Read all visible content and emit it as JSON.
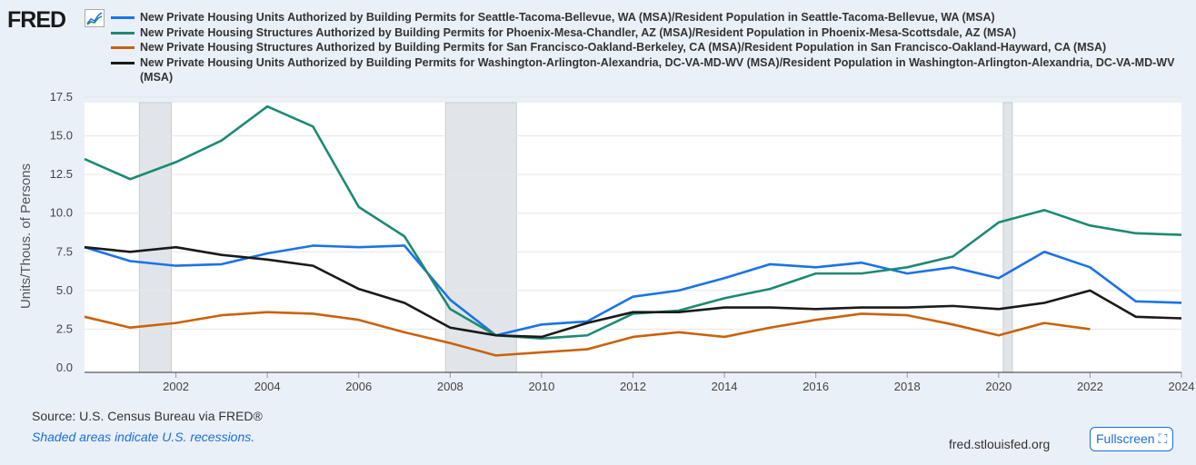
{
  "logo": "FRED",
  "source": "Source: U.S. Census Bureau via FRED®",
  "shaded_note": "Shaded areas indicate U.S. recessions.",
  "site": "fred.stlouisfed.org",
  "fullscreen": "Fullscreen",
  "chart_data": {
    "type": "line",
    "ylabel": "Units/Thous. of Persons",
    "ylim": [
      0,
      17.5
    ],
    "xlim": [
      2000,
      2024
    ],
    "yticks": [
      "0.0",
      "2.5",
      "5.0",
      "7.5",
      "10.0",
      "12.5",
      "15.0",
      "17.5"
    ],
    "xticks": [
      "2002",
      "2004",
      "2006",
      "2008",
      "2010",
      "2012",
      "2014",
      "2016",
      "2018",
      "2020",
      "2022",
      "2024"
    ],
    "recessions": [
      [
        2001.2,
        2001.9
      ],
      [
        2007.9,
        2009.45
      ],
      [
        2020.1,
        2020.3
      ]
    ],
    "x": [
      2000,
      2001,
      2002,
      2003,
      2004,
      2005,
      2006,
      2007,
      2008,
      2009,
      2010,
      2011,
      2012,
      2013,
      2014,
      2015,
      2016,
      2017,
      2018,
      2019,
      2020,
      2021,
      2022,
      2023,
      2024
    ],
    "series": [
      {
        "name": "New Private Housing Units Authorized by Building Permits for Seattle-Tacoma-Bellevue, WA (MSA)/Resident Population in Seattle-Tacoma-Bellevue, WA (MSA)",
        "color": "#1a73e8",
        "values": [
          7.8,
          6.9,
          6.6,
          6.7,
          7.4,
          7.9,
          7.8,
          7.9,
          4.4,
          2.1,
          2.8,
          3.0,
          4.6,
          5.0,
          5.8,
          6.7,
          6.5,
          6.8,
          6.1,
          6.5,
          5.8,
          7.5,
          6.5,
          4.3,
          4.2
        ]
      },
      {
        "name": "New Private Housing Structures Authorized by Building Permits for Phoenix-Mesa-Chandler, AZ (MSA)/Resident Population in Phoenix-Mesa-Scottsdale, AZ (MSA)",
        "color": "#1d8a73",
        "values": [
          13.5,
          12.2,
          13.3,
          14.7,
          16.9,
          15.6,
          10.4,
          8.5,
          3.8,
          2.1,
          1.9,
          2.1,
          3.5,
          3.7,
          4.5,
          5.1,
          6.1,
          6.1,
          6.5,
          7.2,
          9.4,
          10.2,
          9.2,
          8.7,
          8.6
        ]
      },
      {
        "name": "New Private Housing Structures Authorized by Building Permits for San Francisco-Oakland-Berkeley, CA (MSA)/Resident Population in San Francisco-Oakland-Hayward, CA (MSA)",
        "color": "#c8630c",
        "values": [
          3.3,
          2.6,
          2.9,
          3.4,
          3.6,
          3.5,
          3.1,
          2.3,
          1.6,
          0.8,
          1.0,
          1.2,
          2.0,
          2.3,
          2.0,
          2.6,
          3.1,
          3.5,
          3.4,
          2.8,
          2.1,
          2.9,
          2.5,
          null,
          null
        ]
      },
      {
        "name": "New Private Housing Units Authorized by Building Permits for Washington-Arlington-Alexandria, DC-VA-MD-WV (MSA)/Resident Population in Washington-Arlington-Alexandria, DC-VA-MD-WV (MSA)",
        "color": "#1a1a1a",
        "values": [
          7.8,
          7.5,
          7.8,
          7.3,
          7.0,
          6.6,
          5.1,
          4.2,
          2.6,
          2.1,
          2.0,
          2.9,
          3.6,
          3.6,
          3.9,
          3.9,
          3.8,
          3.9,
          3.9,
          4.0,
          3.8,
          4.2,
          5.0,
          3.3,
          3.2
        ]
      }
    ]
  }
}
